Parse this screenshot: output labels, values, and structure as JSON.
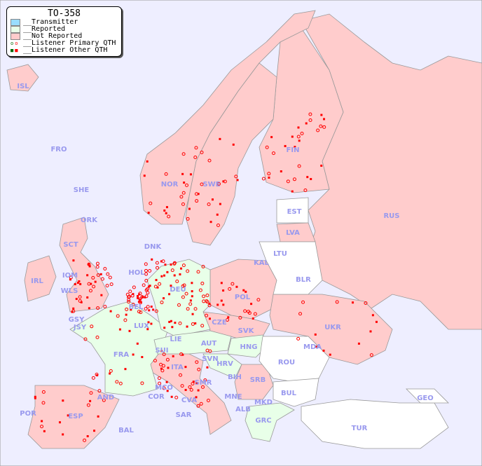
{
  "title": "TO-358",
  "legend": [
    {
      "label": "__Transmitter",
      "color": "#99ddff"
    },
    {
      "label": "__Reported",
      "color": "#e8ffe8"
    },
    {
      "label": "__Not Reported",
      "color": "#ffcccc"
    },
    {
      "label": "__Listener Primary QTH",
      "marker": "open-circle",
      "colors": [
        "#006600",
        "#ff0000"
      ]
    },
    {
      "label": "__Listener Other QTH",
      "marker": "square",
      "colors": [
        "#006600",
        "#ff0000"
      ]
    }
  ],
  "colors": {
    "sea": "#eeeeff",
    "reported": "#e8ffe8",
    "not_reported": "#ffcccc",
    "no_data": "#ffffff",
    "label": "#9999ee"
  },
  "countries": {
    "ISL": "ISL",
    "FRO": "FRO",
    "SHE": "SHE",
    "ORK": "ORK",
    "NOR": "NOR",
    "SWE": "SWE",
    "FIN": "FIN",
    "EST": "EST",
    "LVA": "LVA",
    "RUS": "RUS",
    "LTU": "LTU",
    "KAL": "KAL",
    "BLR": "BLR",
    "DNK": "DNK",
    "HOL": "HOL",
    "BEL": "BEL",
    "DEU": "DEU",
    "POL": "POL",
    "UKR": "UKR",
    "CZE": "CZE",
    "SVK": "SVK",
    "HNG": "HNG",
    "AUT": "AUT",
    "SUI": "SUI",
    "LIE": "LIE",
    "LUX": "LUX",
    "FRA": "FRA",
    "GSY": "GSY",
    "JSY": "JSY",
    "WLS": "WLS",
    "IRL": "IRL",
    "IOM": "IOM",
    "SCT": "SCT",
    "MDA": "MDA",
    "ROU": "ROU",
    "SVN": "SVN",
    "HRV": "HRV",
    "BIH": "BIH",
    "SRB": "SRB",
    "BUL": "BUL",
    "MNE": "MNE",
    "MKD": "MKD",
    "ALB": "ALB",
    "GRC": "GRC",
    "TUR": "TUR",
    "GEO": "GEO",
    "ITA": "ITA",
    "SMR": "SMR",
    "MCO": "MCO",
    "COR": "COR",
    "CVA": "CVA",
    "SAR": "SAR",
    "AND": "AND",
    "ESP": "ESP",
    "POR": "POR",
    "BAL": "BAL"
  }
}
